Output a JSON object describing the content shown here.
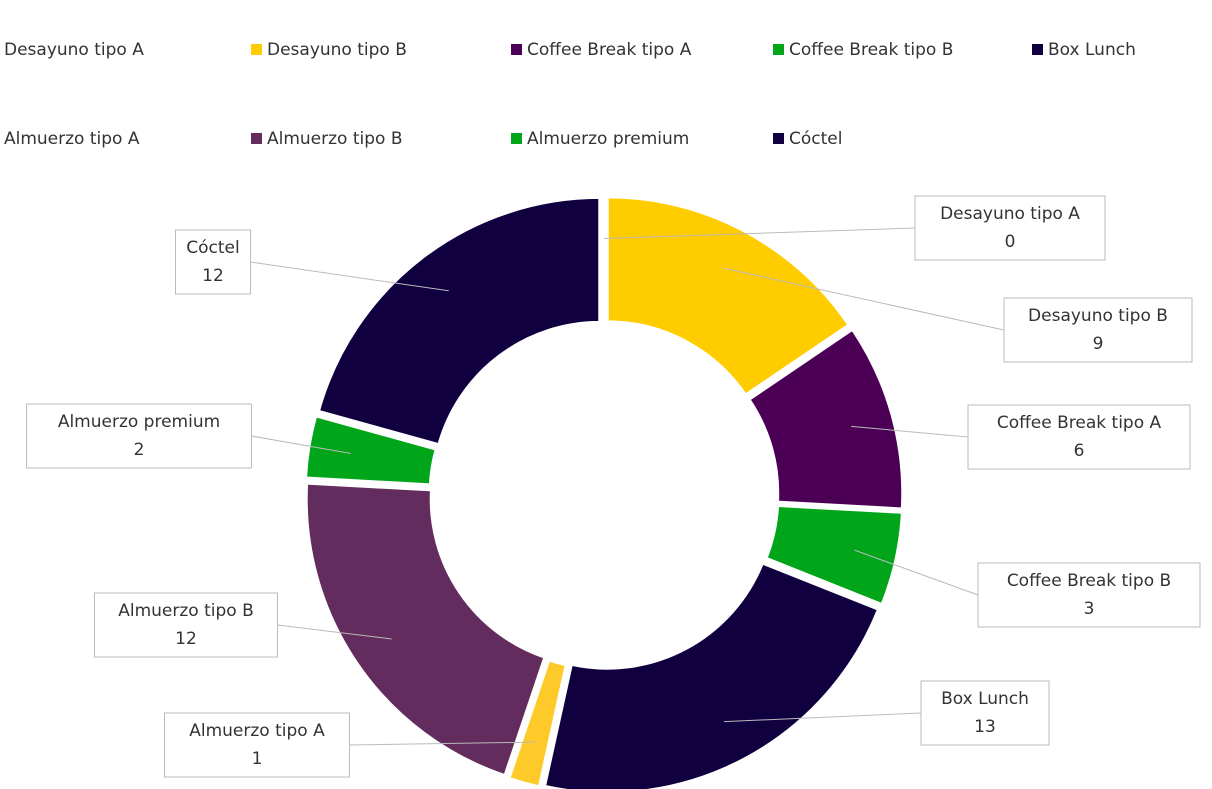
{
  "chart_data": {
    "type": "donut",
    "categories": [
      "Desayuno tipo A",
      "Desayuno tipo B",
      "Coffee Break tipo A",
      "Coffee Break tipo B",
      "Box Lunch",
      "Almuerzo tipo A",
      "Almuerzo tipo B",
      "Almuerzo premium",
      "Cóctel"
    ],
    "values": [
      0,
      9,
      6,
      3,
      13,
      1,
      12,
      2,
      12
    ],
    "colors": [
      "#ffcc00",
      "#ffcc00",
      "#4b0055",
      "#00a51a",
      "#10003f",
      "#fdca2a",
      "#632c5e",
      "#00a51a",
      "#10003f"
    ],
    "legend": "top"
  }
}
